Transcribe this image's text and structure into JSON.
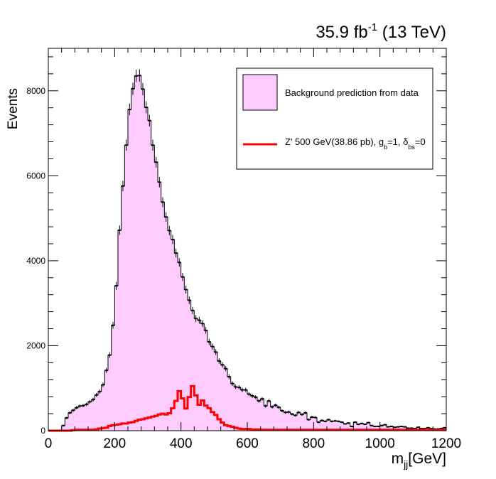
{
  "chart_data": {
    "type": "bar",
    "title": "",
    "lumi_label": {
      "value": "35.9 fb",
      "sup": "-1",
      "suffix": " (13 TeV)"
    },
    "xlabel": {
      "base": "m",
      "sub": "jj",
      "unit": "[GeV]"
    },
    "ylabel": "Events",
    "xlim": [
      0,
      1200
    ],
    "ylim": [
      0,
      9000
    ],
    "x_ticks": [
      0,
      200,
      400,
      600,
      800,
      1000,
      1200
    ],
    "y_ticks": [
      0,
      2000,
      4000,
      6000,
      8000
    ],
    "grid": false,
    "legend_position": "top-right",
    "legend": {
      "background": "Background prediction from data",
      "signal": {
        "text1": "Z' 500 GeV(38.86 pb), g",
        "sub1": "b",
        "text2": "=1, δ",
        "sub2": "bs",
        "text3": "=0"
      }
    },
    "colors": {
      "background_fill": "#ffccff",
      "signal_line": "#ff0000",
      "data": "#000000"
    },
    "bin_width": 10,
    "series": [
      {
        "name": "Background prediction from data",
        "style": "filled-histogram",
        "x_start": 30,
        "values": [
          10,
          120,
          300,
          420,
          480,
          540,
          580,
          590,
          620,
          680,
          730,
          840,
          920,
          1080,
          1420,
          1780,
          2480,
          3410,
          4720,
          5760,
          6720,
          7560,
          8050,
          8350,
          8360,
          8040,
          7610,
          7300,
          6720,
          6320,
          5850,
          5380,
          5030,
          4710,
          4500,
          4180,
          3960,
          3620,
          3320,
          3070,
          2830,
          2640,
          2600,
          2520,
          2360,
          2090,
          1980,
          1850,
          1640,
          1550,
          1460,
          1270,
          1110,
          1030,
          1020,
          960,
          960,
          860,
          820,
          790,
          700,
          750,
          580,
          700,
          560,
          600,
          550,
          470,
          430,
          440,
          390,
          360,
          430,
          380,
          420,
          260,
          320,
          310,
          200,
          240,
          220,
          260,
          220,
          230,
          220,
          200,
          160,
          180,
          100,
          200,
          150,
          170,
          150,
          190,
          120,
          100,
          100,
          120,
          140,
          90,
          100,
          80,
          90,
          100,
          90,
          60,
          60,
          50,
          80,
          50,
          50,
          70,
          50,
          40,
          40,
          50,
          70
        ]
      },
      {
        "name": "Z' 500 GeV(38.86 pb), g_b=1, δ_bs=0",
        "style": "line-histogram",
        "x_start": 0,
        "values": [
          0,
          0,
          0,
          0,
          0,
          0,
          0,
          10,
          20,
          20,
          20,
          20,
          20,
          20,
          30,
          50,
          60,
          70,
          110,
          130,
          140,
          150,
          170,
          170,
          190,
          200,
          230,
          260,
          270,
          290,
          310,
          330,
          350,
          380,
          400,
          380,
          410,
          530,
          700,
          930,
          760,
          520,
          790,
          1050,
          830,
          610,
          710,
          590,
          530,
          440,
          370,
          270,
          190,
          130,
          110,
          90,
          70,
          50,
          40,
          40,
          40,
          30,
          30,
          30,
          20,
          20,
          20,
          20,
          20,
          20,
          20,
          20,
          20,
          20,
          20,
          20,
          20,
          20,
          20,
          20,
          20,
          20,
          20,
          20,
          20,
          20,
          20,
          20,
          20,
          20,
          20,
          20,
          20,
          20,
          20,
          20,
          20,
          20,
          20,
          20,
          20,
          20,
          20,
          20,
          20,
          20,
          20,
          20,
          20,
          20,
          20,
          20,
          20,
          20,
          20,
          20,
          20,
          20,
          20,
          20
        ]
      }
    ]
  }
}
